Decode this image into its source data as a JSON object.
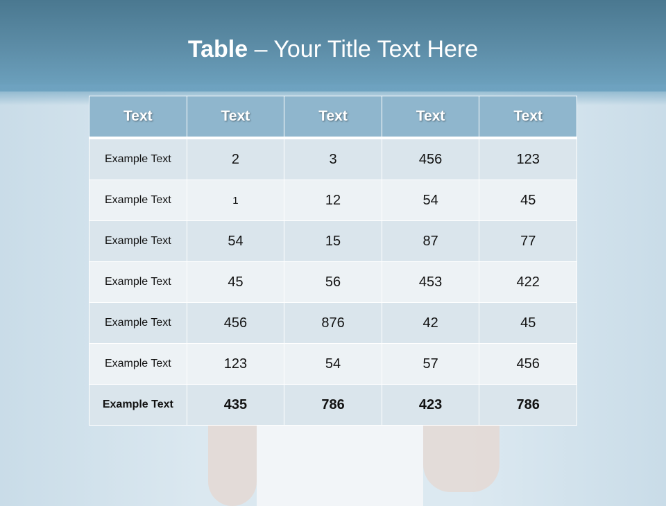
{
  "slide": {
    "title_bold": "Table",
    "title_rest": " – Your Title Text Here"
  },
  "table": {
    "headers": [
      "Text",
      "Text",
      "Text",
      "Text",
      "Text"
    ],
    "rows": [
      [
        "Example Text",
        "2",
        "3",
        "456",
        "123"
      ],
      [
        "Example Text",
        "1",
        "12",
        "54",
        "45"
      ],
      [
        "Example Text",
        "54",
        "15",
        "87",
        "77"
      ],
      [
        "Example Text",
        "45",
        "56",
        "453",
        "422"
      ],
      [
        "Example Text",
        "456",
        "876",
        "42",
        "45"
      ],
      [
        "Example Text",
        "123",
        "54",
        "57",
        "456"
      ],
      [
        "Example Text",
        "435",
        "786",
        "423",
        "786"
      ]
    ]
  },
  "colors": {
    "header_bg": "#8fb6cd",
    "row_odd": "#dae5ec",
    "row_even": "#edf2f5",
    "title_band": "#5c8ca6"
  }
}
